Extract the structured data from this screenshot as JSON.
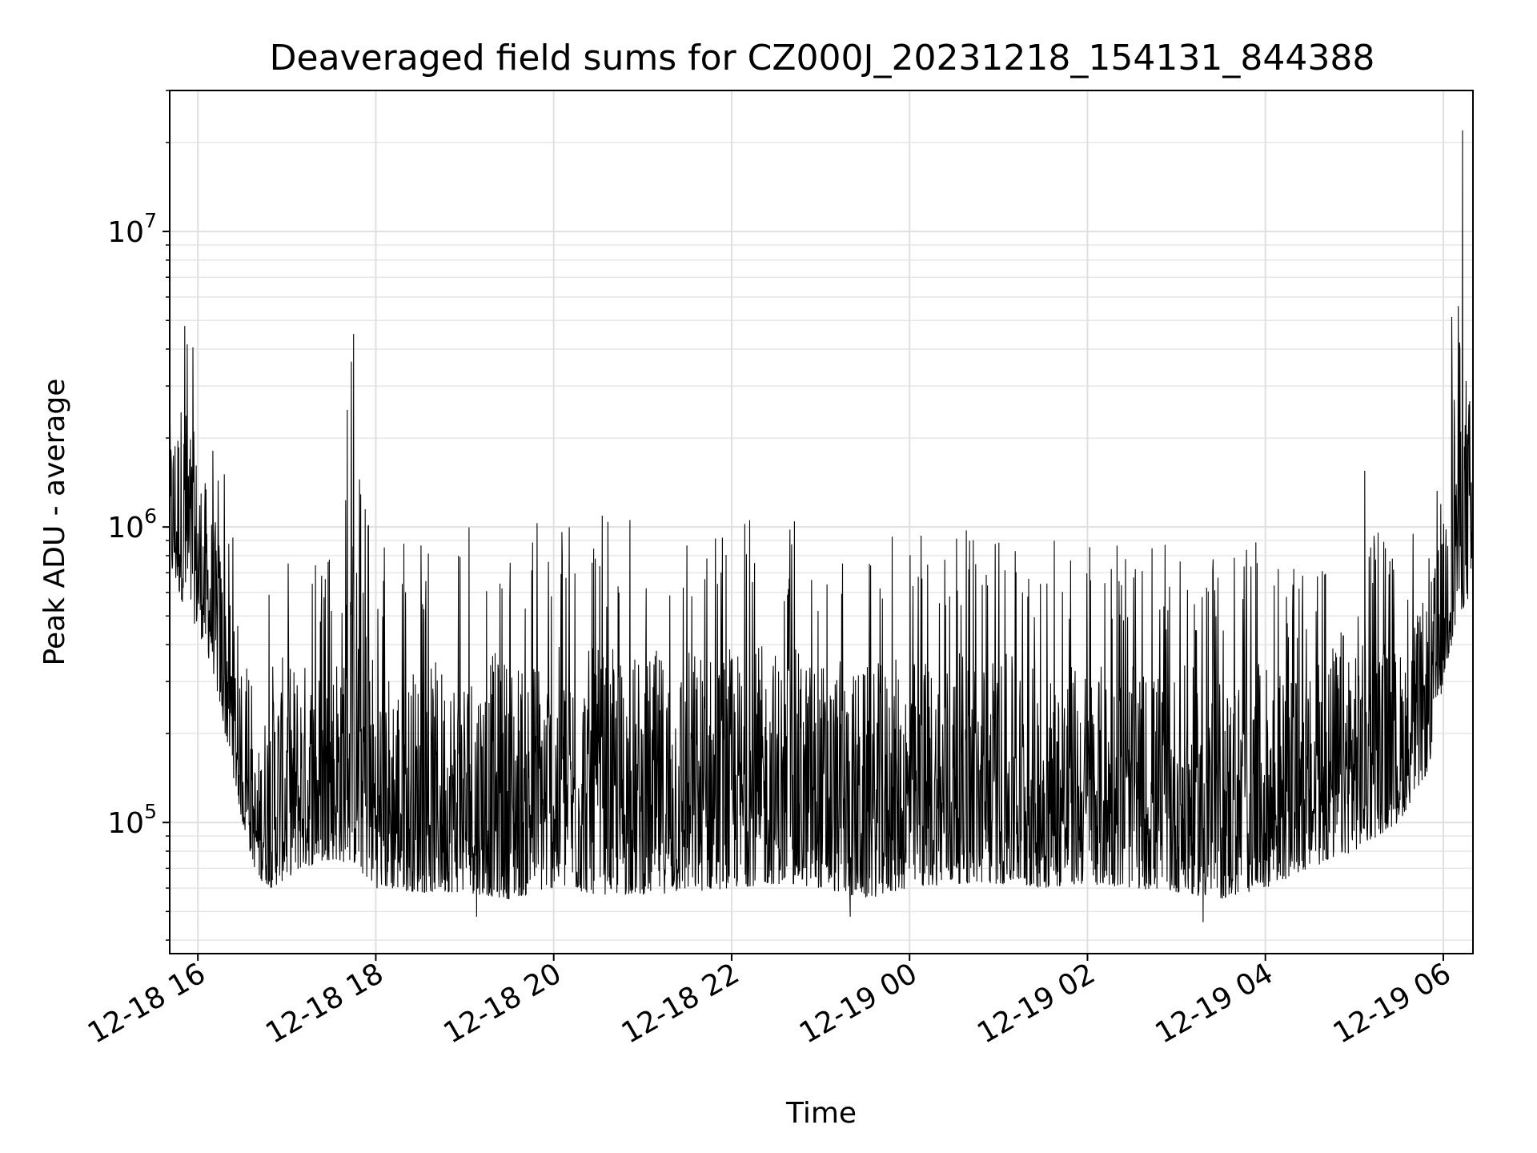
{
  "chart_data": {
    "type": "line",
    "title": "Deaveraged field sums for CZ000J_20231218_154131_844388",
    "xlabel": "Time",
    "ylabel": "Peak ADU - average",
    "yscale": "log",
    "ylim": [
      36000,
      30000000
    ],
    "xlim": [
      "2023-12-18 15:41",
      "2023-12-19 06:20"
    ],
    "grid": true,
    "x_tick_labels": [
      "12-18 16",
      "12-18 18",
      "12-18 20",
      "12-18 22",
      "12-19 00",
      "12-19 02",
      "12-19 04",
      "12-19 06"
    ],
    "x_ticks": [
      "2023-12-18 16:00",
      "2023-12-18 18:00",
      "2023-12-18 20:00",
      "2023-12-18 22:00",
      "2023-12-19 00:00",
      "2023-12-19 02:00",
      "2023-12-19 04:00",
      "2023-12-19 06:00"
    ],
    "y_ticks": [
      {
        "value": 100000,
        "base": "10",
        "exp": "5"
      },
      {
        "value": 1000000,
        "base": "10",
        "exp": "6"
      },
      {
        "value": 10000000,
        "base": "10",
        "exp": "7"
      }
    ],
    "series": [
      {
        "color": "#000000",
        "envelope": [
          {
            "x": "2023-12-18 15:41",
            "low": 700000,
            "high": 4200000
          },
          {
            "x": "2023-12-18 15:50",
            "low": 550000,
            "high": 7300000
          },
          {
            "x": "2023-12-18 16:00",
            "low": 450000,
            "high": 4000000
          },
          {
            "x": "2023-12-18 16:10",
            "low": 330000,
            "high": 2200000
          },
          {
            "x": "2023-12-18 16:20",
            "low": 180000,
            "high": 1700000
          },
          {
            "x": "2023-12-18 16:30",
            "low": 100000,
            "high": 380000
          },
          {
            "x": "2023-12-18 16:40",
            "low": 65000,
            "high": 280000
          },
          {
            "x": "2023-12-18 16:50",
            "low": 60000,
            "high": 950000
          },
          {
            "x": "2023-12-18 17:10",
            "low": 70000,
            "high": 900000
          },
          {
            "x": "2023-12-18 17:30",
            "low": 75000,
            "high": 800000
          },
          {
            "x": "2023-12-18 17:45",
            "low": 72000,
            "high": 4500000
          },
          {
            "x": "2023-12-18 18:00",
            "low": 60000,
            "high": 950000
          },
          {
            "x": "2023-12-18 18:30",
            "low": 58000,
            "high": 900000
          },
          {
            "x": "2023-12-18 19:00",
            "low": 58000,
            "high": 1000000
          },
          {
            "x": "2023-12-18 19:30",
            "low": 55000,
            "high": 1100000
          },
          {
            "x": "2023-12-18 20:00",
            "low": 60000,
            "high": 1100000
          },
          {
            "x": "2023-12-18 20:30",
            "low": 57000,
            "high": 1100000
          },
          {
            "x": "2023-12-18 21:00",
            "low": 57000,
            "high": 1050000
          },
          {
            "x": "2023-12-18 21:30",
            "low": 58000,
            "high": 1150000
          },
          {
            "x": "2023-12-18 22:00",
            "low": 60000,
            "high": 1100000
          },
          {
            "x": "2023-12-18 22:30",
            "low": 62000,
            "high": 1100000
          },
          {
            "x": "2023-12-18 23:00",
            "low": 60000,
            "high": 1000000
          },
          {
            "x": "2023-12-18 23:30",
            "low": 55000,
            "high": 900000
          },
          {
            "x": "2023-12-19 00:00",
            "low": 60000,
            "high": 1000000
          },
          {
            "x": "2023-12-19 00:30",
            "low": 62000,
            "high": 1000000
          },
          {
            "x": "2023-12-19 01:00",
            "low": 62000,
            "high": 1000000
          },
          {
            "x": "2023-12-19 01:30",
            "low": 60000,
            "high": 900000
          },
          {
            "x": "2023-12-19 02:00",
            "low": 62000,
            "high": 900000
          },
          {
            "x": "2023-12-19 02:30",
            "low": 60000,
            "high": 850000
          },
          {
            "x": "2023-12-19 03:00",
            "low": 58000,
            "high": 900000
          },
          {
            "x": "2023-12-19 03:30",
            "low": 55000,
            "high": 850000
          },
          {
            "x": "2023-12-19 04:00",
            "low": 60000,
            "high": 900000
          },
          {
            "x": "2023-12-19 04:30",
            "low": 70000,
            "high": 700000
          },
          {
            "x": "2023-12-19 05:00",
            "low": 80000,
            "high": 1500000
          },
          {
            "x": "2023-12-19 05:30",
            "low": 100000,
            "high": 800000
          },
          {
            "x": "2023-12-19 05:50",
            "low": 150000,
            "high": 1300000
          },
          {
            "x": "2023-12-19 06:00",
            "low": 300000,
            "high": 2000000
          },
          {
            "x": "2023-12-19 06:10",
            "low": 500000,
            "high": 22000000
          },
          {
            "x": "2023-12-19 06:20",
            "low": 600000,
            "high": 5000000
          }
        ],
        "spikes": [
          {
            "x": "2023-12-18 17:45",
            "value": 4500000
          },
          {
            "x": "2023-12-18 19:08",
            "value": 48000
          },
          {
            "x": "2023-12-18 23:20",
            "value": 48000
          },
          {
            "x": "2023-12-19 03:18",
            "value": 46000
          },
          {
            "x": "2023-12-19 05:07",
            "value": 1550000
          },
          {
            "x": "2023-12-19 06:13",
            "value": 22000000
          }
        ]
      }
    ]
  }
}
